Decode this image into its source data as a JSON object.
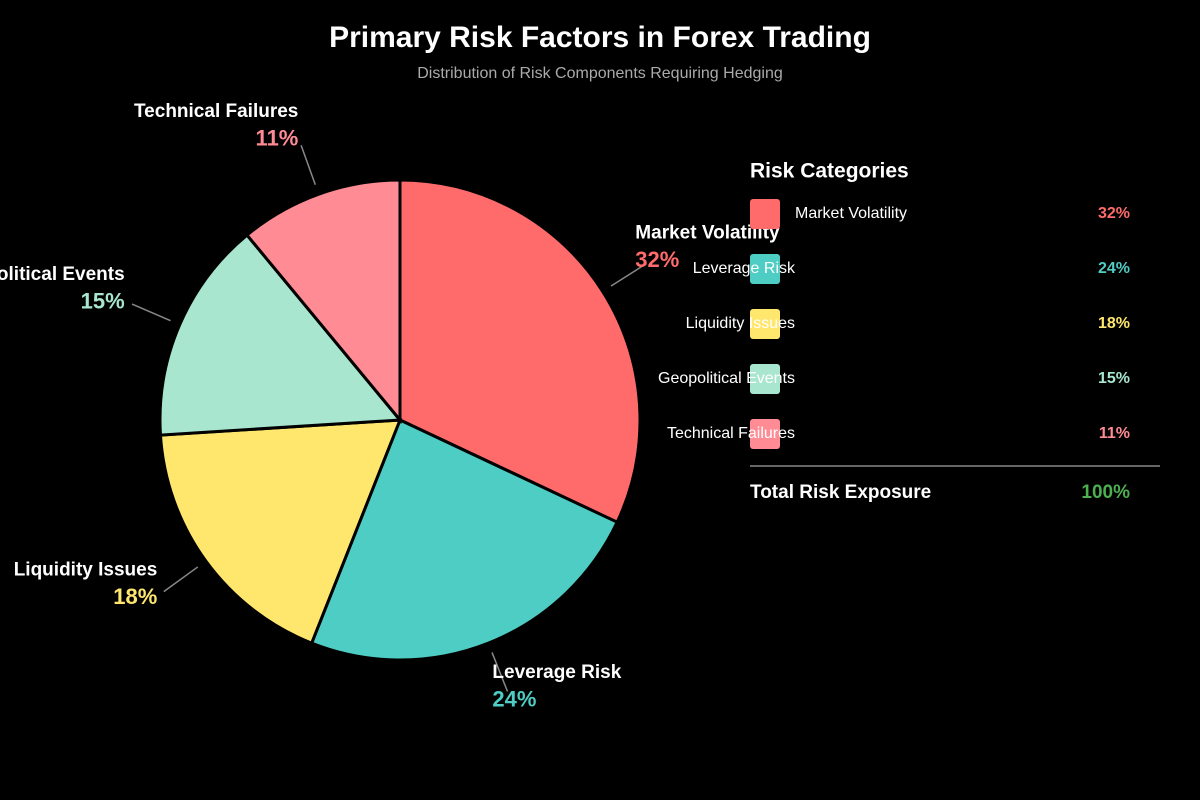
{
  "chart_data": {
    "type": "pie",
    "title": "Primary Risk Factors in Forex Trading",
    "subtitle": "Distribution of Risk Components Requiring Hedging",
    "categories": [
      "Market Volatility",
      "Leverage Risk",
      "Liquidity Issues",
      "Geopolitical Events",
      "Technical Failures"
    ],
    "values": [
      32,
      24,
      18,
      15,
      11
    ],
    "value_labels": [
      "32%",
      "24%",
      "18%",
      "15%",
      "11%"
    ],
    "colors": [
      "#ff6b6b",
      "#4ecdc4",
      "#ffe66d",
      "#a8e6cf",
      "#ff8b94"
    ],
    "legend_title": "Risk Categories",
    "total": {
      "label": "Total Risk Exposure",
      "value": 100,
      "value_label": "100%",
      "color": "#4caf50"
    }
  }
}
